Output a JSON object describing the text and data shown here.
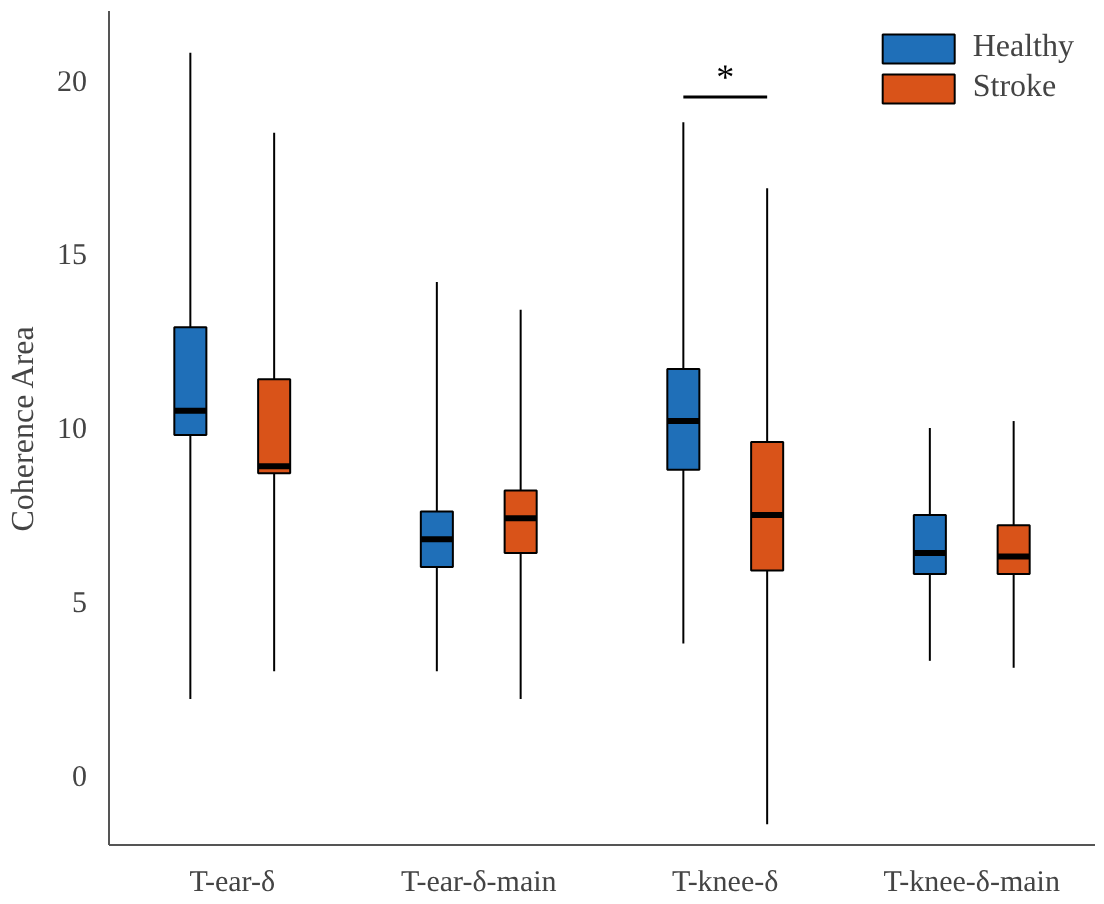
{
  "chart_data": {
    "type": "box",
    "ylabel": "Coherence Area",
    "categories": [
      "T-ear-δ",
      "T-ear-δ-main",
      "T-knee-δ",
      "T-knee-δ-main"
    ],
    "series": [
      {
        "name": "Healthy",
        "color": "#1f6fb8",
        "boxes": [
          {
            "low": 2.2,
            "q1": 9.8,
            "median": 10.5,
            "q3": 12.9,
            "high": 20.8
          },
          {
            "low": 3.0,
            "q1": 6.0,
            "median": 6.8,
            "q3": 7.6,
            "high": 14.2
          },
          {
            "low": 3.8,
            "q1": 8.8,
            "median": 10.2,
            "q3": 11.7,
            "high": 18.8
          },
          {
            "low": 3.3,
            "q1": 5.8,
            "median": 6.4,
            "q3": 7.5,
            "high": 10.0
          }
        ]
      },
      {
        "name": "Stroke",
        "color": "#d95319",
        "boxes": [
          {
            "low": 3.0,
            "q1": 8.7,
            "median": 8.9,
            "q3": 11.4,
            "high": 18.5
          },
          {
            "low": 2.2,
            "q1": 6.4,
            "median": 7.4,
            "q3": 8.2,
            "high": 13.4
          },
          {
            "low": -1.4,
            "q1": 5.9,
            "median": 7.5,
            "q3": 9.6,
            "high": 16.9
          },
          {
            "low": 3.1,
            "q1": 5.8,
            "median": 6.3,
            "q3": 7.2,
            "high": 10.2
          }
        ]
      }
    ],
    "ylim": [
      -2,
      22
    ],
    "yticks": [
      0,
      5,
      10,
      15,
      20
    ],
    "annotations": [
      "*"
    ],
    "grid": false,
    "legend": "top right"
  }
}
